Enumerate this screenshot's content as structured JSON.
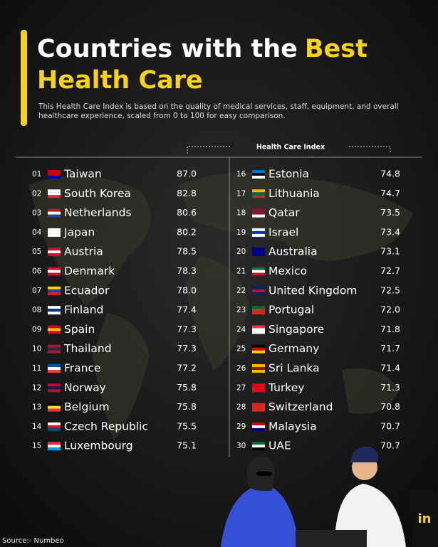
{
  "header": {
    "title_start": "Countries with the",
    "title_highlight": "Best",
    "title_line2": "Health Care",
    "subtitle_line1": "This Health Care Index is based on the quality of medical services, staff, equipment, and overall",
    "subtitle_line2": "healthcare experience, scaled from 0 to 100 for easy comparison."
  },
  "table": {
    "column_header": "Health Care Index",
    "rows": [
      [
        "01",
        "Taiwan",
        "87.0"
      ],
      [
        "02",
        "South Korea",
        "82.8"
      ],
      [
        "03",
        "Netherlands",
        "80.6"
      ],
      [
        "04",
        "Japan",
        "80.2"
      ],
      [
        "05",
        "Austria",
        "78.5"
      ],
      [
        "06",
        "Denmark",
        "78.3"
      ],
      [
        "07",
        "Ecuador",
        "78.0"
      ],
      [
        "08",
        "Finland",
        "77.4"
      ],
      [
        "09",
        "Spain",
        "77.3"
      ],
      [
        "10",
        "Thailand",
        "77.3"
      ],
      [
        "11",
        "France",
        "77.2"
      ],
      [
        "12",
        "Norway",
        "75.8"
      ],
      [
        "13",
        "Belgium",
        "75.8"
      ],
      [
        "14",
        "Czech Republic",
        "75.5"
      ],
      [
        "15",
        "Luxembourg",
        "75.1"
      ],
      [
        "16",
        "Estonia",
        "74.8"
      ],
      [
        "17",
        "Lithuania",
        "74.7"
      ],
      [
        "18",
        "Qatar",
        "73.5"
      ],
      [
        "19",
        "Israel",
        "73.4"
      ],
      [
        "20",
        "Australia",
        "73.1"
      ],
      [
        "21",
        "Mexico",
        "72.7"
      ],
      [
        "22",
        "United Kingdom",
        "72.5"
      ],
      [
        "23",
        "Portugal",
        "72.0"
      ],
      [
        "24",
        "Singapore",
        "71.8"
      ],
      [
        "25",
        "Germany",
        "71.7"
      ],
      [
        "26",
        "Sri Lanka",
        "71.4"
      ],
      [
        "27",
        "Turkey",
        "71.3"
      ],
      [
        "28",
        "Switzerland",
        "70.8"
      ],
      [
        "29",
        "Malaysia",
        "70.7"
      ],
      [
        "30",
        "UAE",
        "70.7"
      ]
    ]
  },
  "footer": {
    "source": "Source:- Numbeo"
  }
}
